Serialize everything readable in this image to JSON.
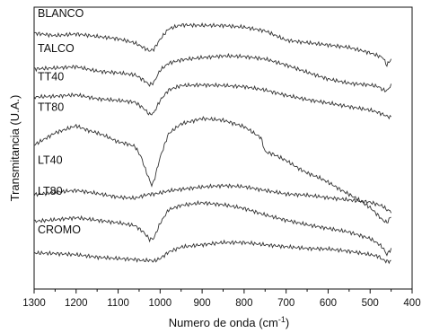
{
  "chart_data": {
    "type": "line",
    "title": "",
    "xlabel_main": "Numero de onda (cm",
    "xlabel_sup": "-1",
    "xlabel_tail": ")",
    "ylabel": "Transmitancia (U.A.)",
    "xlim": [
      1300,
      400
    ],
    "x_reversed": true,
    "ylim": [
      0,
      100
    ],
    "y_ticks_shown": false,
    "grid": false,
    "legend": "inline-labels-left",
    "line_color": "#333333",
    "x_ticks": [
      1300,
      1200,
      1100,
      1000,
      900,
      800,
      700,
      600,
      500,
      400
    ],
    "series": [
      {
        "name": "BLANCO",
        "x": [
          1300,
          1250,
          1200,
          1150,
          1100,
          1060,
          1040,
          1025,
          1015,
          1000,
          980,
          950,
          900,
          850,
          800,
          750,
          700,
          650,
          600,
          550,
          500,
          480,
          470,
          460,
          450
        ],
        "y": [
          90.8,
          89.9,
          90.5,
          89.6,
          88.8,
          87.3,
          85.7,
          84.5,
          85.1,
          88.6,
          92.3,
          93.7,
          93.5,
          93.5,
          92.9,
          91.6,
          88.3,
          87.4,
          86.6,
          85.7,
          83.8,
          82.7,
          82.2,
          79.4,
          81.6
        ]
      },
      {
        "name": "TALCO",
        "x": [
          1300,
          1250,
          1200,
          1150,
          1100,
          1060,
          1040,
          1025,
          1015,
          1000,
          980,
          950,
          900,
          850,
          800,
          750,
          700,
          650,
          600,
          550,
          500,
          480,
          470,
          460,
          450
        ],
        "y": [
          78.1,
          78.4,
          78.9,
          77.3,
          76.7,
          76.0,
          74.2,
          72.4,
          73.3,
          77.6,
          80.1,
          81.3,
          82.1,
          82.7,
          82.5,
          81.6,
          79.5,
          76.9,
          74.5,
          73.0,
          72.4,
          71.8,
          70.7,
          70.3,
          72.4
        ]
      },
      {
        "name": "TT40",
        "x": [
          1300,
          1250,
          1200,
          1150,
          1100,
          1060,
          1040,
          1025,
          1015,
          1000,
          980,
          950,
          900,
          850,
          800,
          750,
          700,
          650,
          600,
          550,
          500,
          480,
          470,
          460,
          450
        ],
        "y": [
          68.1,
          68.4,
          68.9,
          67.5,
          66.9,
          66.3,
          64.2,
          61.9,
          62.5,
          66.9,
          70.6,
          72.2,
          72.4,
          72.2,
          71.8,
          70.6,
          68.7,
          67.2,
          66.0,
          64.7,
          63.5,
          62.6,
          62.0,
          61.3,
          60.9
        ]
      },
      {
        "name": "TT80",
        "x": [
          1300,
          1250,
          1200,
          1170,
          1150,
          1130,
          1100,
          1080,
          1060,
          1045,
          1035,
          1025,
          1020,
          1015,
          1000,
          980,
          950,
          900,
          850,
          800,
          760,
          750,
          730,
          700,
          670,
          650,
          620,
          600,
          570,
          550,
          530,
          500,
          480,
          470,
          460,
          450
        ],
        "y": [
          51.1,
          55.4,
          57.9,
          56.2,
          55.4,
          54.3,
          52.2,
          51.6,
          50.6,
          46.8,
          42.4,
          38.6,
          36.8,
          38.2,
          46.7,
          55.1,
          58.6,
          60.5,
          59.9,
          57.6,
          53.7,
          48.7,
          47.8,
          45.6,
          42.8,
          41.2,
          39.4,
          37.9,
          35.2,
          33.6,
          31.9,
          28.9,
          26.0,
          24.4,
          23.6,
          25.7
        ]
      },
      {
        "name": "LT40",
        "x": [
          1300,
          1250,
          1200,
          1150,
          1100,
          1060,
          1040,
          1025,
          1015,
          1000,
          980,
          950,
          900,
          850,
          800,
          750,
          700,
          650,
          600,
          550,
          500,
          480,
          470,
          460,
          450
        ],
        "y": [
          33.5,
          34.3,
          35.0,
          33.9,
          32.6,
          32.2,
          33.1,
          33.7,
          33.7,
          34.1,
          34.8,
          35.4,
          36.2,
          36.7,
          36.3,
          35.0,
          33.7,
          33.3,
          32.4,
          31.6,
          30.8,
          29.9,
          29.4,
          28.1,
          27.5
        ]
      },
      {
        "name": "LT80",
        "x": [
          1300,
          1250,
          1200,
          1150,
          1100,
          1060,
          1040,
          1025,
          1015,
          1000,
          980,
          950,
          900,
          850,
          800,
          750,
          700,
          650,
          600,
          550,
          500,
          480,
          470,
          460,
          450
        ],
        "y": [
          24.0,
          24.6,
          25.3,
          24.4,
          23.5,
          22.5,
          20.3,
          17.6,
          18.0,
          23.3,
          28.1,
          29.7,
          30.6,
          29.9,
          28.6,
          26.3,
          24.4,
          22.8,
          21.5,
          20.2,
          17.9,
          16.0,
          14.7,
          12.2,
          14.3
        ]
      },
      {
        "name": "CROMO",
        "x": [
          1300,
          1250,
          1200,
          1150,
          1100,
          1060,
          1040,
          1025,
          1015,
          1000,
          980,
          950,
          900,
          850,
          800,
          750,
          700,
          650,
          600,
          550,
          500,
          480,
          470,
          460,
          450
        ],
        "y": [
          12.8,
          12.6,
          12.2,
          11.3,
          10.8,
          10.5,
          10.1,
          10.2,
          9.9,
          10.8,
          13.1,
          14.9,
          15.7,
          16.5,
          16.5,
          15.7,
          15.0,
          14.4,
          14.2,
          13.4,
          12.2,
          11.6,
          10.4,
          9.8,
          9.9
        ]
      }
    ]
  }
}
